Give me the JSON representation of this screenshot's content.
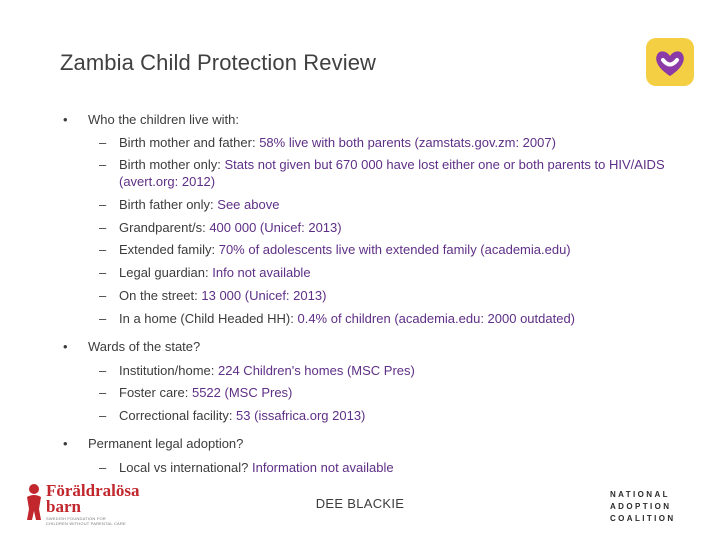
{
  "slide": {
    "title": "Zambia Child Protection Review",
    "footer": "DEE BLACKIE"
  },
  "colors": {
    "highlight": "#5e2f86",
    "text": "#3c3c3c",
    "heart_bg": "#f4cf43",
    "heart": "#8b3aa7",
    "foraldralosa_red": "#c1272d"
  },
  "icons": {
    "bullet": "•",
    "dash": "–",
    "top_right_logo": "heart-logo-icon"
  },
  "bullets": [
    {
      "text": "Who the children live with:",
      "items": [
        {
          "label": "Birth mother and father: ",
          "value": "58% live with both parents (zamstats.gov.zm: 2007)"
        },
        {
          "label": "Birth mother only: ",
          "value": "Stats not given but 670 000 have lost either one or both parents to HIV/AIDS (avert.org: 2012)"
        },
        {
          "label": "Birth father only: ",
          "value": "See above"
        },
        {
          "label": "Grandparent/s: ",
          "value": "400 000 (Unicef: 2013)"
        },
        {
          "label": "Extended family: ",
          "value": "70% of adolescents live with extended family (academia.edu)"
        },
        {
          "label": "Legal guardian: ",
          "value": "Info not available"
        },
        {
          "label": "On the street: ",
          "value": "13 000 (Unicef: 2013)"
        },
        {
          "label": "In a home (Child Headed HH): ",
          "value": "0.4% of children (academia.edu: 2000 outdated)"
        }
      ]
    },
    {
      "text": "Wards of the state?",
      "items": [
        {
          "label": "Institution/home: ",
          "value": "224 Children's homes (MSC Pres)"
        },
        {
          "label": "Foster care: ",
          "value": "5522 (MSC Pres)"
        },
        {
          "label": "Correctional facility: ",
          "value": "53 (issafrica.org 2013)"
        }
      ]
    },
    {
      "text": "Permanent legal adoption?",
      "items": [
        {
          "label": "Local vs international?  ",
          "value": "Information not available"
        }
      ]
    }
  ],
  "logos": {
    "left_line1": "Föräldralösa",
    "left_line2": "barn",
    "left_small": "SWEDISH FOUNDATION FOR CHILDREN WITHOUT PARENTAL CARE",
    "right_line1": "NATIONAL",
    "right_line2": "ADOPTION",
    "right_line3": "COALITION"
  }
}
